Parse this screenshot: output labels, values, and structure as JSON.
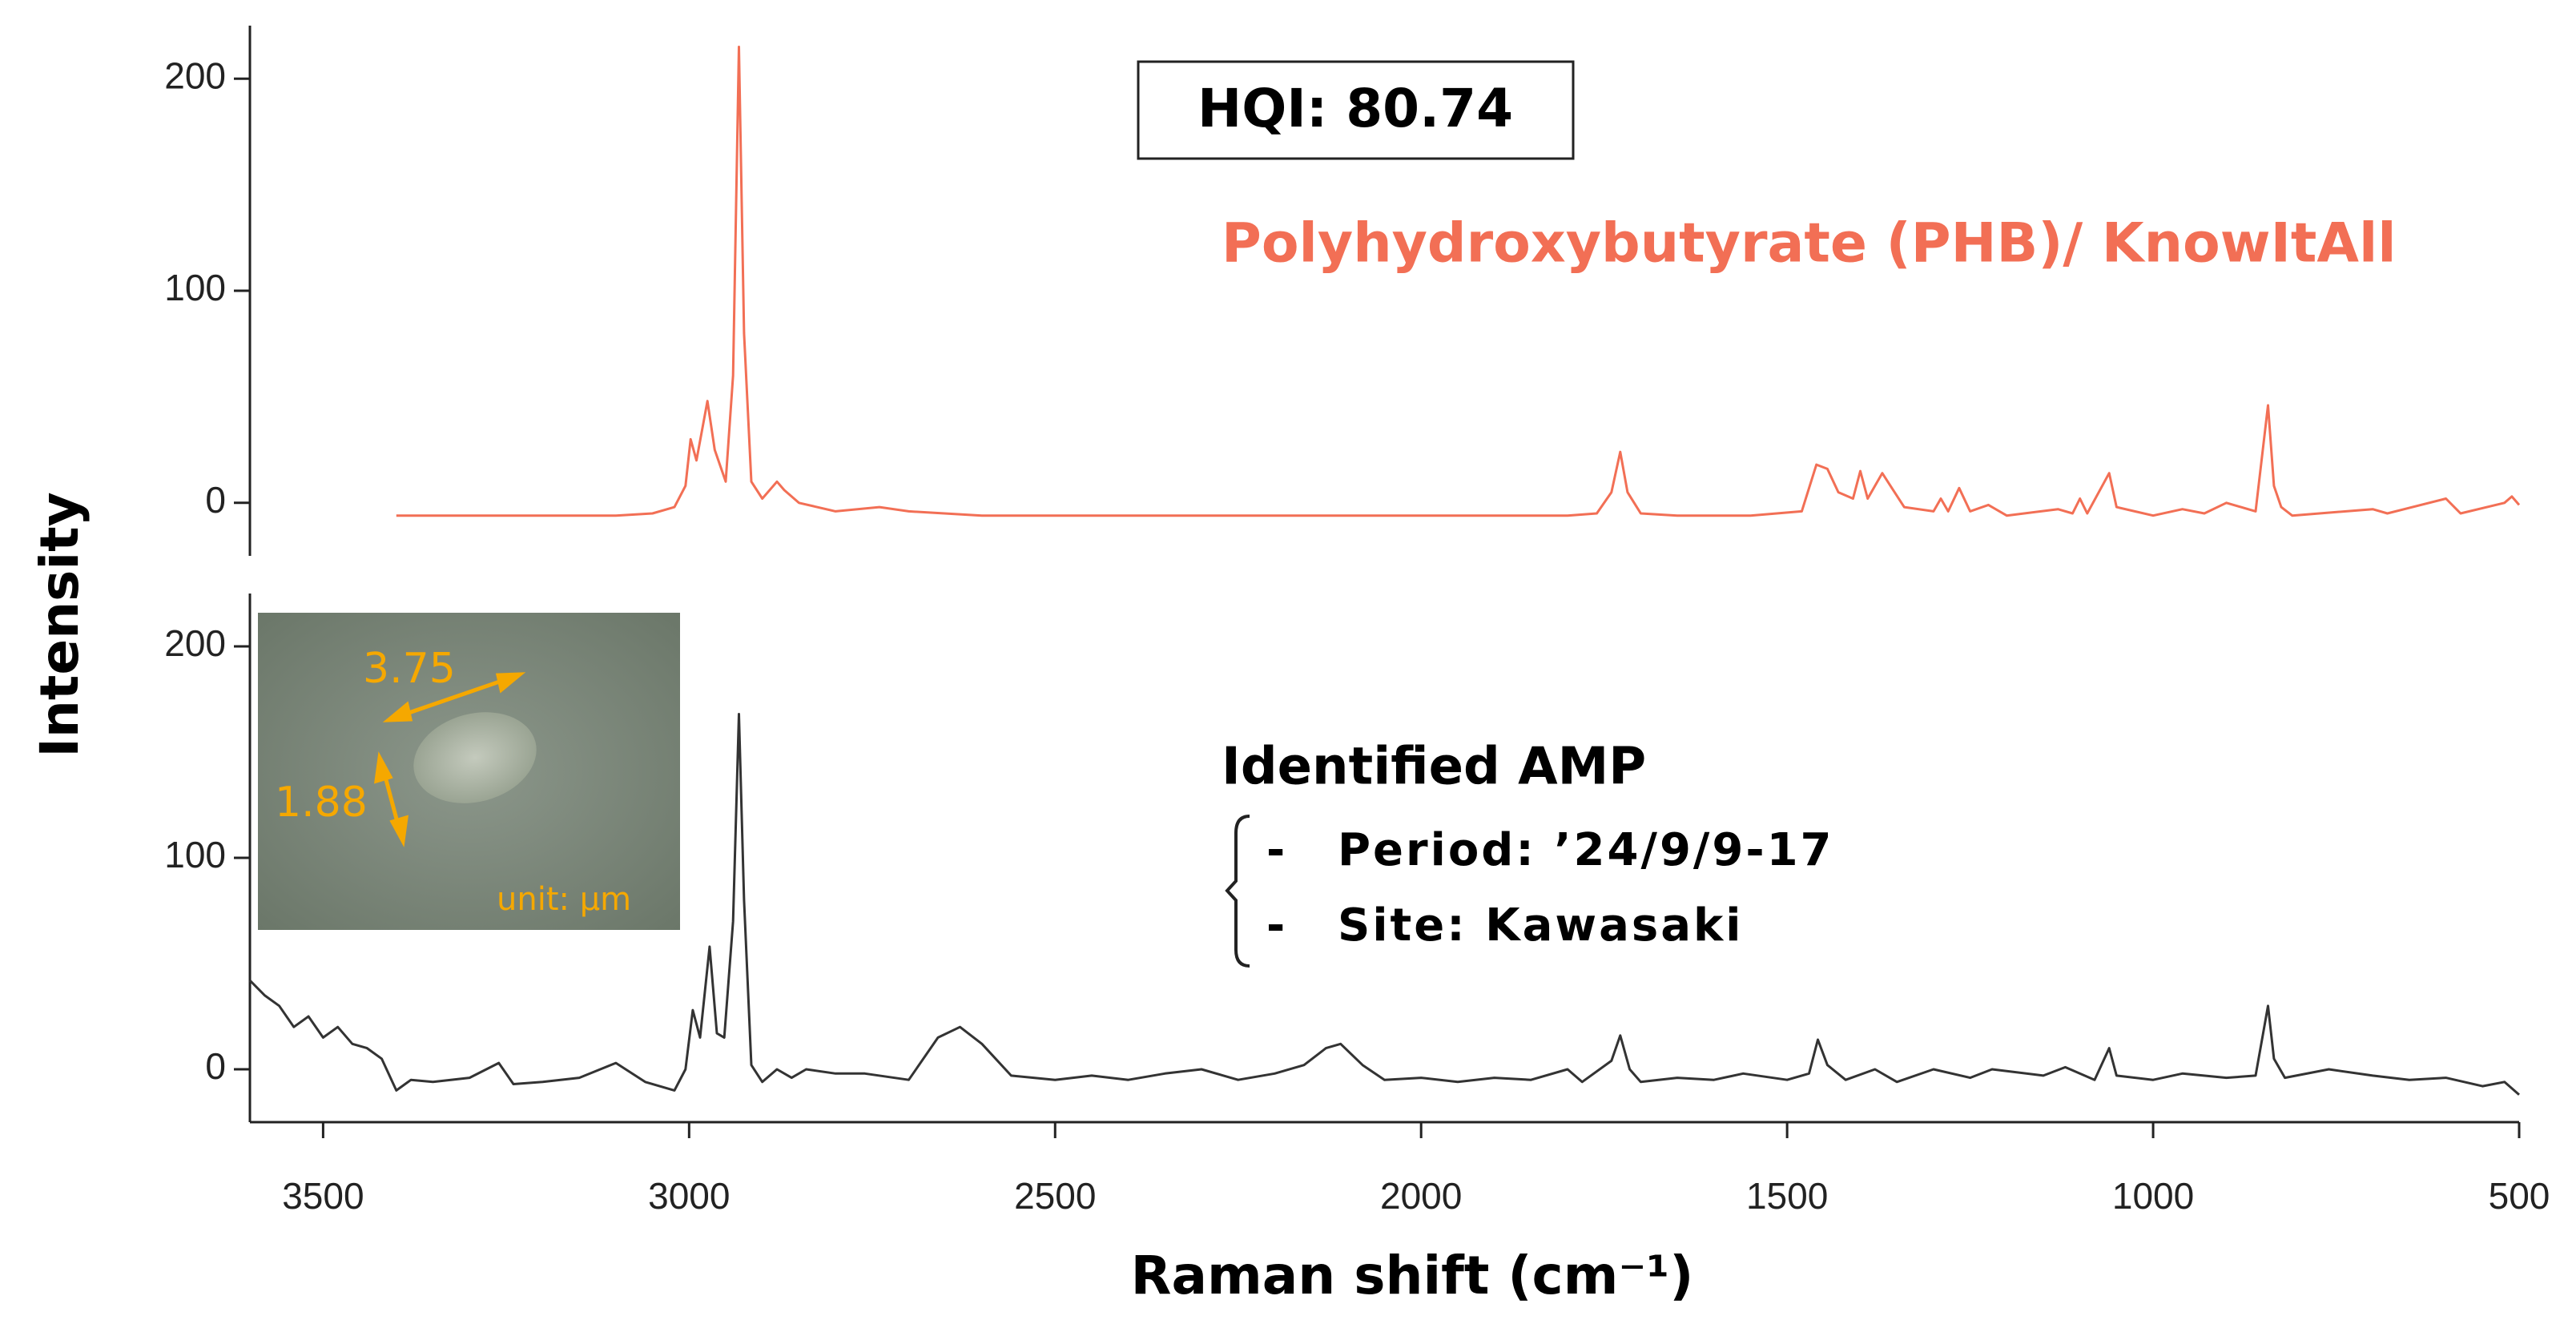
{
  "chart_data": [
    {
      "type": "line",
      "ylabel": "Intensity",
      "annotations": [
        "HQI: 80.74",
        "Polyhydroxybutyrate (PHB)/ KnowItAll"
      ],
      "color": "#f26f55",
      "xlim": [
        3600,
        500
      ],
      "ylim": [
        -25,
        225
      ],
      "yticks": [
        0,
        100,
        200
      ],
      "x": [
        3400,
        3300,
        3200,
        3100,
        3050,
        3020,
        3005,
        2998,
        2990,
        2975,
        2965,
        2950,
        2940,
        2932,
        2925,
        2915,
        2900,
        2880,
        2870,
        2850,
        2800,
        2740,
        2700,
        2600,
        2400,
        2200,
        2000,
        1800,
        1760,
        1740,
        1728,
        1718,
        1700,
        1650,
        1550,
        1480,
        1460,
        1445,
        1430,
        1410,
        1400,
        1390,
        1370,
        1355,
        1340,
        1300,
        1290,
        1280,
        1265,
        1250,
        1225,
        1200,
        1130,
        1110,
        1100,
        1090,
        1060,
        1050,
        1000,
        960,
        930,
        900,
        880,
        860,
        843,
        835,
        825,
        810,
        700,
        680,
        600,
        580,
        520,
        510,
        500
      ],
      "values": [
        -6,
        -6,
        -6,
        -6,
        -5,
        -2,
        8,
        30,
        20,
        48,
        25,
        10,
        60,
        215,
        80,
        10,
        2,
        10,
        6,
        0,
        -4,
        -2,
        -4,
        -6,
        -6,
        -6,
        -6,
        -6,
        -5,
        5,
        24,
        5,
        -5,
        -6,
        -6,
        -4,
        18,
        16,
        5,
        2,
        15,
        2,
        14,
        6,
        -2,
        -4,
        2,
        -4,
        7,
        -4,
        -1,
        -6,
        -3,
        -5,
        2,
        -5,
        14,
        -2,
        -6,
        -3,
        -5,
        0,
        -2,
        -4,
        46,
        8,
        -2,
        -6,
        -3,
        -5,
        2,
        -5,
        0,
        3,
        -1
      ]
    },
    {
      "type": "line",
      "xlabel": "Raman shift (cm⁻¹)",
      "heading": "Identified AMP",
      "list": [
        {
          "marker": "-",
          "text": "Period: ’24/9/9-17"
        },
        {
          "marker": "-",
          "text": "Site: Kawasaki"
        }
      ],
      "inset": [
        "3.75",
        "1.88",
        "unit: µm"
      ],
      "color": "#333333",
      "xlim": [
        3600,
        500
      ],
      "ylim": [
        -25,
        225
      ],
      "yticks": [
        0,
        100,
        200
      ],
      "xticks": [
        3500,
        3000,
        2500,
        2000,
        1500,
        1000,
        500
      ],
      "x": [
        3600,
        3580,
        3560,
        3540,
        3520,
        3500,
        3480,
        3460,
        3440,
        3420,
        3400,
        3380,
        3350,
        3300,
        3260,
        3240,
        3200,
        3150,
        3100,
        3060,
        3020,
        3005,
        2995,
        2985,
        2972,
        2962,
        2952,
        2940,
        2932,
        2925,
        2915,
        2900,
        2880,
        2860,
        2840,
        2800,
        2760,
        2700,
        2660,
        2630,
        2600,
        2560,
        2500,
        2450,
        2400,
        2350,
        2300,
        2250,
        2200,
        2160,
        2130,
        2110,
        2080,
        2050,
        2000,
        1950,
        1900,
        1850,
        1800,
        1780,
        1740,
        1728,
        1715,
        1700,
        1650,
        1600,
        1560,
        1500,
        1470,
        1458,
        1445,
        1420,
        1380,
        1350,
        1300,
        1250,
        1220,
        1150,
        1120,
        1080,
        1060,
        1050,
        1000,
        960,
        900,
        860,
        843,
        835,
        820,
        760,
        700,
        650,
        600,
        550,
        520,
        500
      ],
      "values": [
        42,
        35,
        30,
        20,
        25,
        15,
        20,
        12,
        10,
        5,
        -10,
        -5,
        -6,
        -4,
        3,
        -7,
        -6,
        -4,
        3,
        -6,
        -10,
        0,
        28,
        15,
        58,
        17,
        15,
        70,
        168,
        80,
        2,
        -6,
        0,
        -4,
        0,
        -2,
        -2,
        -5,
        15,
        20,
        12,
        -3,
        -5,
        -3,
        -5,
        -2,
        0,
        -5,
        -2,
        2,
        10,
        12,
        2,
        -5,
        -4,
        -6,
        -4,
        -5,
        0,
        -6,
        4,
        16,
        0,
        -6,
        -4,
        -5,
        -2,
        -5,
        -2,
        14,
        2,
        -5,
        0,
        -6,
        0,
        -4,
        0,
        -3,
        1,
        -5,
        10,
        -3,
        -5,
        -2,
        -4,
        -3,
        30,
        5,
        -4,
        0,
        -3,
        -5,
        -4,
        -8,
        -6,
        -12
      ]
    }
  ]
}
